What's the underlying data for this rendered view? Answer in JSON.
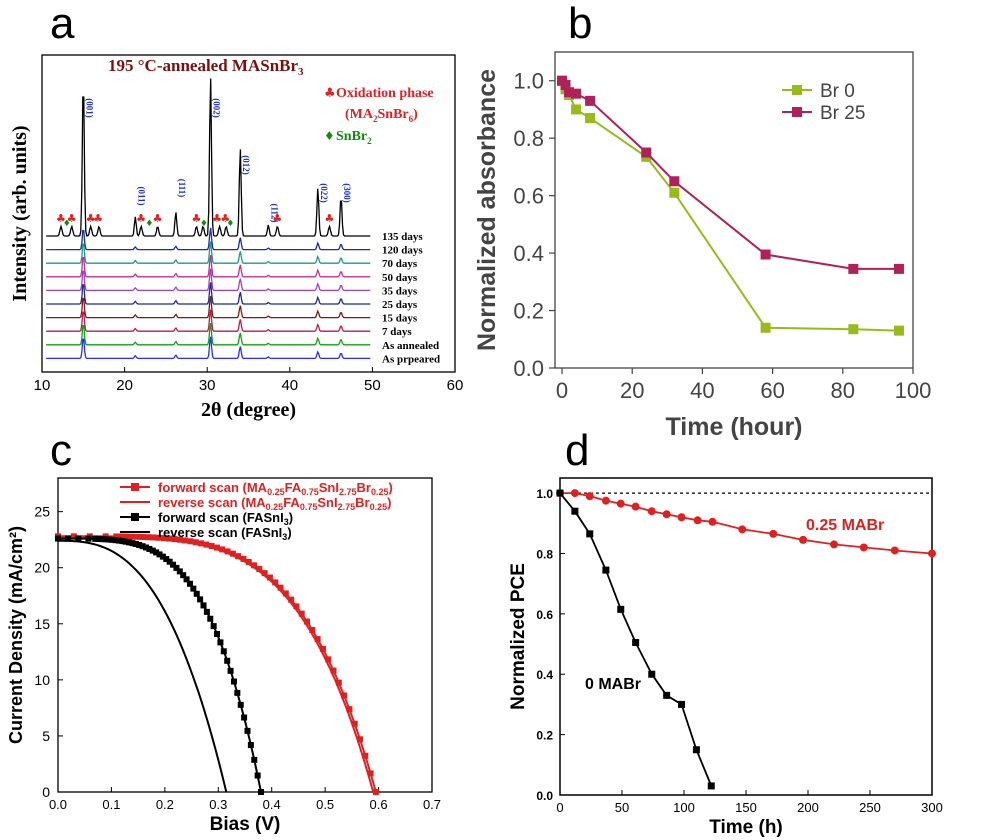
{
  "chart_data": [
    {
      "panel": "a",
      "type": "line",
      "title": "195 °C-annealed MASnBr",
      "title_sub": "3",
      "xlabel": "2θ (degree)",
      "ylabel": "Intensity (arb. units)",
      "xlim": [
        10,
        60
      ],
      "xticks": [
        "10",
        "20",
        "30",
        "40",
        "50",
        "60"
      ],
      "legend": [
        {
          "marker": "♣",
          "line1": "Oxidation phase",
          "line2": [
            "(MA",
            "2",
            "SnBr",
            "6",
            ")"
          ],
          "color": "#e02020"
        },
        {
          "marker": "♦",
          "label": "SnBr",
          "sub": "2",
          "color": "#108a10"
        }
      ],
      "peaks": [
        {
          "hkl": "(001)",
          "x": 15.0
        },
        {
          "hkl": "(011)",
          "x": 21.3
        },
        {
          "hkl": "(111)",
          "x": 26.2
        },
        {
          "hkl": "(002)",
          "x": 30.4
        },
        {
          "hkl": "(012)",
          "x": 34.0
        },
        {
          "hkl": "(112)",
          "x": 37.4
        },
        {
          "hkl": "(022)",
          "x": 43.4
        },
        {
          "hkl": "(300)",
          "x": 46.2
        }
      ],
      "series": [
        {
          "name": "135 days",
          "color": "#000000"
        },
        {
          "name": "120 days",
          "color": "#1a2aa8"
        },
        {
          "name": "70 days",
          "color": "#1a9a8a"
        },
        {
          "name": "50 days",
          "color": "#c0308a"
        },
        {
          "name": "35 days",
          "color": "#a040c0"
        },
        {
          "name": "25 days",
          "color": "#1a2a90"
        },
        {
          "name": "15 days",
          "color": "#7a1a1a"
        },
        {
          "name": "7 days",
          "color": "#c01a4a"
        },
        {
          "name": "As annealed",
          "color": "#10a010"
        },
        {
          "name": "As prpeared",
          "color": "#2a2aff"
        }
      ]
    },
    {
      "panel": "b",
      "type": "line",
      "xlabel": "Time (hour)",
      "ylabel": "Normalized absorbance",
      "xlim": [
        -2,
        100
      ],
      "ylim": [
        0.0,
        1.1
      ],
      "xticks": [
        "0",
        "20",
        "40",
        "60",
        "80",
        "100"
      ],
      "yticks": [
        "0.0",
        "0.2",
        "0.4",
        "0.6",
        "0.8",
        "1.0"
      ],
      "legend_position": "top-right",
      "series": [
        {
          "name": "Br 0",
          "color": "#9aba1a",
          "x": [
            0,
            1,
            2,
            4,
            8,
            24,
            32,
            58,
            83,
            96
          ],
          "y": [
            1.0,
            0.97,
            0.95,
            0.9,
            0.87,
            0.735,
            0.61,
            0.14,
            0.135,
            0.13
          ]
        },
        {
          "name": "Br 25",
          "color": "#b0205a",
          "x": [
            0,
            1,
            2,
            4,
            8,
            24,
            32,
            58,
            83,
            96
          ],
          "y": [
            1.0,
            0.985,
            0.96,
            0.955,
            0.93,
            0.75,
            0.65,
            0.395,
            0.345,
            0.345
          ]
        }
      ]
    },
    {
      "panel": "c",
      "type": "line",
      "xlabel": "Bias (V)",
      "ylabel": "Current Density (mA/cm²)",
      "xlim": [
        0.0,
        0.7
      ],
      "ylim": [
        0,
        28
      ],
      "xticks": [
        "0.0",
        "0.1",
        "0.2",
        "0.3",
        "0.4",
        "0.5",
        "0.6",
        "0.7"
      ],
      "yticks": [
        "0",
        "5",
        "10",
        "15",
        "20",
        "25"
      ],
      "series": [
        {
          "name": "forward scan (MA0.25FA0.75SnI2.75Br0.25)",
          "color": "#e02020",
          "jsc": 22.8,
          "voc": 0.595,
          "shape": 4.5,
          "markers": true
        },
        {
          "name": "reverse scan (MA0.25FA0.75SnI2.75Br0.25)",
          "color": "#e02020",
          "jsc": 22.7,
          "voc": 0.59,
          "shape": 4.5,
          "markers": false
        },
        {
          "name": "forward scan (FASnI3)",
          "color": "#000000",
          "jsc": 22.6,
          "voc": 0.38,
          "shape": 4.0,
          "markers": true
        },
        {
          "name": "reverse scan (FASnI3)",
          "color": "#000000",
          "jsc": 22.4,
          "voc": 0.315,
          "shape": 2.8,
          "markers": false
        }
      ],
      "legend_rich": [
        {
          "text": [
            [
              "forward scan (MA",
              ""
            ],
            [
              "0.25",
              "s"
            ],
            [
              "FA",
              ""
            ],
            [
              "0.75",
              "s"
            ],
            [
              "SnI",
              ""
            ],
            [
              "2.75",
              "s"
            ],
            [
              "Br",
              ""
            ],
            [
              "0.25",
              "s"
            ],
            [
              ")",
              ""
            ]
          ],
          "color": "#e02020",
          "marker": true
        },
        {
          "text": [
            [
              "reverse scan (MA",
              ""
            ],
            [
              "0.25",
              "s"
            ],
            [
              "FA",
              ""
            ],
            [
              "0.75",
              "s"
            ],
            [
              "SnI",
              ""
            ],
            [
              "2.75",
              "s"
            ],
            [
              "Br",
              ""
            ],
            [
              "0.25",
              "s"
            ],
            [
              ")",
              ""
            ]
          ],
          "color": "#e02020",
          "marker": false
        },
        {
          "text": [
            [
              "forward scan (FASnI",
              ""
            ],
            [
              "3",
              "s"
            ],
            [
              ")",
              ""
            ]
          ],
          "color": "#000000",
          "marker": true
        },
        {
          "text": [
            [
              "reverse scan (FASnI",
              ""
            ],
            [
              "3",
              "s"
            ],
            [
              ")",
              ""
            ]
          ],
          "color": "#000000",
          "marker": false
        }
      ]
    },
    {
      "panel": "d",
      "type": "line",
      "xlabel": "Time (h)",
      "ylabel": "Normalized PCE",
      "xlim": [
        0,
        300
      ],
      "ylim": [
        0.0,
        1.05
      ],
      "xticks": [
        "0",
        "50",
        "100",
        "150",
        "200",
        "250",
        "300"
      ],
      "yticks": [
        "0.0",
        "0.2",
        "0.4",
        "0.6",
        "0.8",
        "1.0"
      ],
      "reference_line": 1.0,
      "series": [
        {
          "name": "0.25 MABr",
          "color": "#e02020",
          "x": [
            0,
            12,
            24,
            37,
            49,
            61,
            74,
            86,
            98,
            111,
            123,
            147,
            172,
            196,
            221,
            245,
            270,
            300
          ],
          "y": [
            1.0,
            1.0,
            0.99,
            0.975,
            0.965,
            0.955,
            0.94,
            0.93,
            0.92,
            0.91,
            0.905,
            0.88,
            0.865,
            0.845,
            0.83,
            0.82,
            0.81,
            0.8
          ]
        },
        {
          "name": "0 MABr",
          "color": "#000000",
          "x": [
            0,
            12,
            24,
            37,
            49,
            61,
            74,
            86,
            98,
            110,
            122
          ],
          "y": [
            1.0,
            0.94,
            0.865,
            0.745,
            0.615,
            0.505,
            0.4,
            0.33,
            0.3,
            0.15,
            0.03
          ]
        }
      ]
    }
  ],
  "panel_labels": [
    "a",
    "b",
    "c",
    "d"
  ]
}
